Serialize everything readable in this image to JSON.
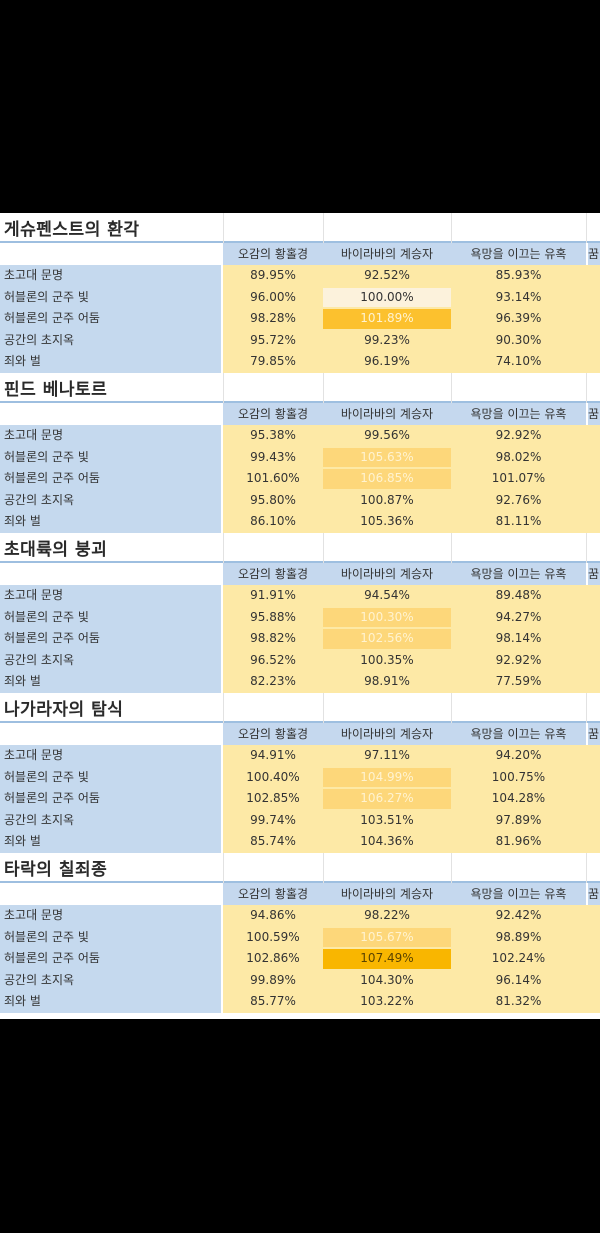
{
  "columns": [
    "오감의 황홀경",
    "바이라바의 계승자",
    "욕망을 이끄는 유혹",
    "꿈"
  ],
  "blocks": [
    {
      "title": "게슈펜스트의 환각",
      "rows": [
        {
          "label": "초고대 문명",
          "values": [
            "89.95%",
            "92.52%",
            "85.93%"
          ],
          "hl": ""
        },
        {
          "label": "허블론의 군주 빛",
          "values": [
            "96.00%",
            "100.00%",
            "93.14%"
          ],
          "hl": "hi-light"
        },
        {
          "label": "허블론의 군주 어둠",
          "values": [
            "98.28%",
            "101.89%",
            "96.39%"
          ],
          "hl": "hi-strong"
        },
        {
          "label": "공간의 초지옥",
          "values": [
            "95.72%",
            "99.23%",
            "90.30%"
          ],
          "hl": ""
        },
        {
          "label": "죄와 벌",
          "values": [
            "79.85%",
            "96.19%",
            "74.10%"
          ],
          "hl": ""
        }
      ]
    },
    {
      "title": "핀드 베나토르",
      "rows": [
        {
          "label": "초고대 문명",
          "values": [
            "95.38%",
            "99.56%",
            "92.92%"
          ],
          "hl": ""
        },
        {
          "label": "허블론의 군주 빛",
          "values": [
            "99.43%",
            "105.63%",
            "98.02%"
          ],
          "hl": "hi-mid"
        },
        {
          "label": "허블론의 군주 어둠",
          "values": [
            "101.60%",
            "106.85%",
            "101.07%"
          ],
          "hl": "hi-mid"
        },
        {
          "label": "공간의 초지옥",
          "values": [
            "95.80%",
            "100.87%",
            "92.76%"
          ],
          "hl": ""
        },
        {
          "label": "죄와 벌",
          "values": [
            "86.10%",
            "105.36%",
            "81.11%"
          ],
          "hl": ""
        }
      ]
    },
    {
      "title": "초대륙의 붕괴",
      "rows": [
        {
          "label": "초고대 문명",
          "values": [
            "91.91%",
            "94.54%",
            "89.48%"
          ],
          "hl": ""
        },
        {
          "label": "허블론의 군주 빛",
          "values": [
            "95.88%",
            "100.30%",
            "94.27%"
          ],
          "hl": "hi-mid"
        },
        {
          "label": "허블론의 군주 어둠",
          "values": [
            "98.82%",
            "102.56%",
            "98.14%"
          ],
          "hl": "hi-mid"
        },
        {
          "label": "공간의 초지옥",
          "values": [
            "96.52%",
            "100.35%",
            "92.92%"
          ],
          "hl": ""
        },
        {
          "label": "죄와 벌",
          "values": [
            "82.23%",
            "98.91%",
            "77.59%"
          ],
          "hl": ""
        }
      ]
    },
    {
      "title": "나가라자의 탐식",
      "rows": [
        {
          "label": "초고대 문명",
          "values": [
            "94.91%",
            "97.11%",
            "94.20%"
          ],
          "hl": ""
        },
        {
          "label": "허블론의 군주 빛",
          "values": [
            "100.40%",
            "104.99%",
            "100.75%"
          ],
          "hl": "hi-mid"
        },
        {
          "label": "허블론의 군주 어둠",
          "values": [
            "102.85%",
            "106.27%",
            "104.28%"
          ],
          "hl": "hi-mid"
        },
        {
          "label": "공간의 초지옥",
          "values": [
            "99.74%",
            "103.51%",
            "97.89%"
          ],
          "hl": ""
        },
        {
          "label": "죄와 벌",
          "values": [
            "85.74%",
            "104.36%",
            "81.96%"
          ],
          "hl": ""
        }
      ]
    },
    {
      "title": "타락의 칠죄종",
      "rows": [
        {
          "label": "초고대 문명",
          "values": [
            "94.86%",
            "98.22%",
            "92.42%"
          ],
          "hl": ""
        },
        {
          "label": "허블론의 군주 빛",
          "values": [
            "100.59%",
            "105.67%",
            "98.89%"
          ],
          "hl": "hi-mid"
        },
        {
          "label": "허블론의 군주 어둠",
          "values": [
            "102.86%",
            "107.49%",
            "102.24%"
          ],
          "hl": "hi-max"
        },
        {
          "label": "공간의 초지옥",
          "values": [
            "99.89%",
            "104.30%",
            "96.14%"
          ],
          "hl": ""
        },
        {
          "label": "죄와 벌",
          "values": [
            "85.77%",
            "103.22%",
            "81.32%"
          ],
          "hl": ""
        }
      ]
    }
  ]
}
